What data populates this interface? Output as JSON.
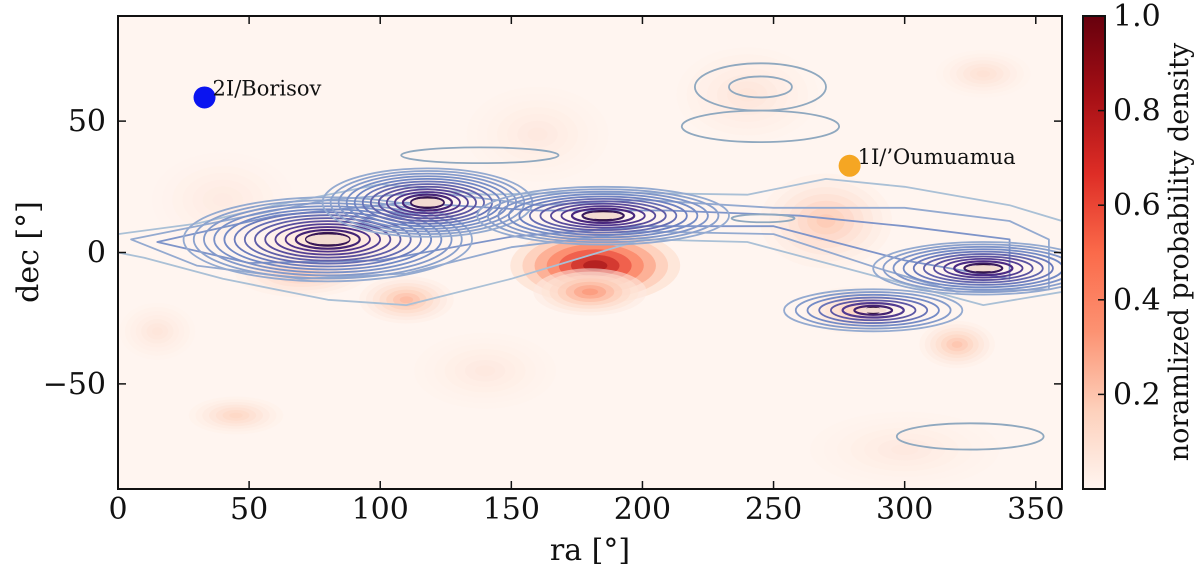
{
  "chart_data": {
    "type": "heatmap",
    "xlabel": "ra [°]",
    "ylabel": "dec [°]",
    "xlim": [
      0,
      360
    ],
    "ylim": [
      -90,
      90
    ],
    "x_ticks": [
      0,
      50,
      100,
      150,
      200,
      250,
      300,
      350
    ],
    "y_ticks": [
      -50,
      0,
      50
    ],
    "y_tick_labels": [
      "−50",
      "0",
      "50"
    ],
    "colorbar": {
      "label": "noramlized probability density",
      "range": [
        0,
        1.0
      ],
      "ticks": [
        0.2,
        0.4,
        0.6,
        0.8,
        1.0
      ],
      "tick_labels": [
        "0.2",
        "0.4",
        "0.6",
        "0.8",
        "1.0"
      ],
      "colormap": [
        "#fff5f0",
        "#fdd0bb",
        "#fc9272",
        "#fb6a4a",
        "#de2d26",
        "#a50f15",
        "#67000d"
      ]
    },
    "heatmap_blobs": [
      {
        "ra": 182,
        "dec": -5,
        "sra": 18,
        "sdec": 8,
        "amp": 0.9
      },
      {
        "ra": 180,
        "dec": -15,
        "sra": 12,
        "sdec": 5,
        "amp": 0.35
      },
      {
        "ra": 110,
        "dec": -18,
        "sra": 10,
        "sdec": 5,
        "amp": 0.25
      },
      {
        "ra": 70,
        "dec": -8,
        "sra": 14,
        "sdec": 5,
        "amp": 0.2
      },
      {
        "ra": 270,
        "dec": 12,
        "sra": 14,
        "sdec": 10,
        "amp": 0.2
      },
      {
        "ra": 320,
        "dec": -35,
        "sra": 8,
        "sdec": 5,
        "amp": 0.22
      },
      {
        "ra": 280,
        "dec": -22,
        "sra": 10,
        "sdec": 5,
        "amp": 0.16
      },
      {
        "ra": 80,
        "dec": 4,
        "sra": 16,
        "sdec": 6,
        "amp": 0.12
      },
      {
        "ra": 45,
        "dec": -62,
        "sra": 10,
        "sdec": 4,
        "amp": 0.15
      },
      {
        "ra": 15,
        "dec": -30,
        "sra": 8,
        "sdec": 6,
        "amp": 0.08
      },
      {
        "ra": 330,
        "dec": 68,
        "sra": 10,
        "sdec": 5,
        "amp": 0.1
      },
      {
        "ra": 240,
        "dec": 60,
        "sra": 15,
        "sdec": 10,
        "amp": 0.08
      },
      {
        "ra": 160,
        "dec": 45,
        "sra": 15,
        "sdec": 10,
        "amp": 0.06
      },
      {
        "ra": 300,
        "dec": -75,
        "sra": 20,
        "sdec": 8,
        "amp": 0.06
      },
      {
        "ra": 140,
        "dec": -45,
        "sra": 15,
        "sdec": 8,
        "amp": 0.06
      },
      {
        "ra": 40,
        "dec": 20,
        "sra": 15,
        "sdec": 10,
        "amp": 0.05
      }
    ],
    "contour_clusters": [
      {
        "ra": 80,
        "dec": 5,
        "hw": 55,
        "hh": 16,
        "n": 14
      },
      {
        "ra": 118,
        "dec": 19,
        "hw": 40,
        "hh": 13,
        "n": 13
      },
      {
        "ra": 185,
        "dec": 14,
        "hw": 48,
        "hh": 11,
        "n": 12
      },
      {
        "ra": 330,
        "dec": -6,
        "hw": 42,
        "hh": 10,
        "n": 11
      },
      {
        "ra": 288,
        "dec": -22,
        "hw": 34,
        "hh": 8,
        "n": 8
      }
    ],
    "contour_bands": [
      {
        "points": [
          [
            0,
            7
          ],
          [
            30,
            11
          ],
          [
            60,
            18
          ],
          [
            100,
            26
          ],
          [
            140,
            22
          ],
          [
            180,
            23
          ],
          [
            240,
            22
          ],
          [
            270,
            28
          ],
          [
            300,
            25
          ],
          [
            340,
            18
          ],
          [
            360,
            12
          ],
          [
            360,
            -15
          ],
          [
            330,
            -20
          ],
          [
            300,
            -12
          ],
          [
            270,
            -4
          ],
          [
            240,
            4
          ],
          [
            200,
            5
          ],
          [
            150,
            -10
          ],
          [
            110,
            -20
          ],
          [
            80,
            -18
          ],
          [
            40,
            -10
          ],
          [
            10,
            -2
          ],
          [
            0,
            0
          ]
        ]
      },
      {
        "points": [
          [
            5,
            5
          ],
          [
            40,
            12
          ],
          [
            80,
            20
          ],
          [
            120,
            23
          ],
          [
            160,
            18
          ],
          [
            200,
            20
          ],
          [
            250,
            17
          ],
          [
            300,
            17
          ],
          [
            340,
            12
          ],
          [
            355,
            5
          ],
          [
            355,
            -14
          ],
          [
            320,
            -15
          ],
          [
            290,
            -6
          ],
          [
            250,
            7
          ],
          [
            200,
            8
          ],
          [
            150,
            2
          ],
          [
            110,
            -8
          ],
          [
            70,
            -10
          ],
          [
            30,
            -5
          ]
        ]
      },
      {
        "points": [
          [
            15,
            4
          ],
          [
            60,
            14
          ],
          [
            110,
            19
          ],
          [
            160,
            16
          ],
          [
            210,
            16
          ],
          [
            260,
            14
          ],
          [
            300,
            10
          ],
          [
            340,
            5
          ],
          [
            340,
            -10
          ],
          [
            300,
            -3
          ],
          [
            250,
            10
          ],
          [
            200,
            10
          ],
          [
            150,
            6
          ],
          [
            100,
            -3
          ],
          [
            50,
            -4
          ]
        ]
      }
    ],
    "small_contours": [
      {
        "ra": 245,
        "dec": 63,
        "hw": 25,
        "hh": 9
      },
      {
        "ra": 245,
        "dec": 63,
        "hw": 12,
        "hh": 4
      },
      {
        "ra": 245,
        "dec": 48,
        "hw": 30,
        "hh": 6
      },
      {
        "ra": 138,
        "dec": 37,
        "hw": 30,
        "hh": 3
      },
      {
        "ra": 325,
        "dec": -70,
        "hw": 28,
        "hh": 5
      },
      {
        "ra": 246,
        "dec": 13,
        "hw": 12,
        "hh": 1.5
      }
    ],
    "annotations": [
      {
        "ra": 33,
        "dec": 59,
        "color": "#0a14f0",
        "label": "2I/Borisov"
      },
      {
        "ra": 279,
        "dec": 33,
        "color": "#f5a623",
        "label": "1I/’Oumuamua"
      }
    ]
  }
}
